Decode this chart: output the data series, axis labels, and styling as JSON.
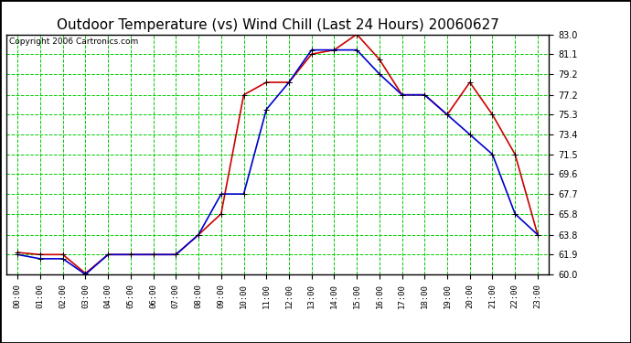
{
  "title": "Outdoor Temperature (vs) Wind Chill (Last 24 Hours) 20060627",
  "copyright": "Copyright 2006 Cartronics.com",
  "hours": [
    "00:00",
    "01:00",
    "02:00",
    "03:00",
    "04:00",
    "05:00",
    "06:00",
    "07:00",
    "08:00",
    "09:00",
    "10:00",
    "11:00",
    "12:00",
    "13:00",
    "14:00",
    "15:00",
    "16:00",
    "17:00",
    "18:00",
    "19:00",
    "20:00",
    "21:00",
    "22:00",
    "23:00"
  ],
  "outdoor_temp": [
    62.1,
    61.9,
    61.9,
    60.1,
    61.9,
    61.9,
    61.9,
    61.9,
    63.8,
    65.8,
    77.2,
    78.4,
    78.4,
    81.1,
    81.5,
    83.0,
    80.6,
    77.2,
    77.2,
    75.3,
    78.4,
    75.3,
    71.5,
    63.8
  ],
  "wind_chill": [
    61.9,
    61.5,
    61.5,
    60.0,
    61.9,
    61.9,
    61.9,
    61.9,
    63.8,
    67.7,
    67.7,
    75.8,
    78.4,
    81.5,
    81.5,
    81.5,
    79.2,
    77.2,
    77.2,
    75.3,
    73.4,
    71.5,
    65.8,
    63.8
  ],
  "temp_color": "#cc0000",
  "chill_color": "#0000cc",
  "grid_color": "#00cc00",
  "bg_color": "#ffffff",
  "plot_bg": "#ffffff",
  "ylim_min": 60.0,
  "ylim_max": 83.0,
  "yticks": [
    60.0,
    61.9,
    63.8,
    65.8,
    67.7,
    69.6,
    71.5,
    73.4,
    75.3,
    77.2,
    79.2,
    81.1,
    83.0
  ],
  "title_fontsize": 11,
  "copyright_fontsize": 6.5,
  "marker": "+",
  "marker_size": 5,
  "linewidth": 1.2
}
